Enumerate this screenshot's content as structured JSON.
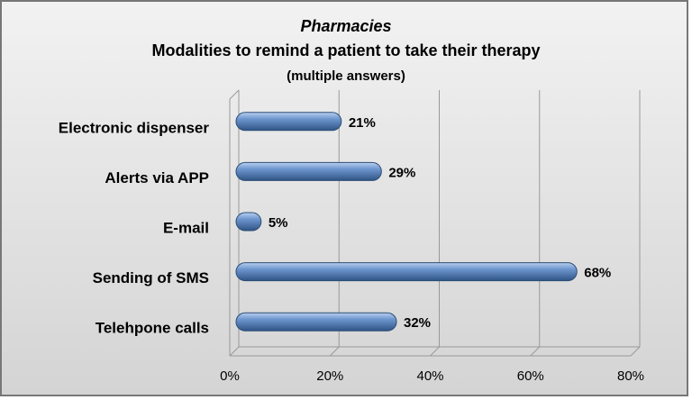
{
  "chart_data": {
    "type": "bar",
    "orientation": "horizontal",
    "title": "Pharmacies",
    "subtitle": "Modalities to remind a patient to take their therapy",
    "annotation": "(multiple answers)",
    "categories": [
      "Electronic dispenser",
      "Alerts via APP",
      "E-mail",
      "Sending of SMS",
      "Telehpone calls"
    ],
    "values": [
      21,
      29,
      5,
      68,
      32
    ],
    "value_labels": [
      "21%",
      "29%",
      "5%",
      "68%",
      "32%"
    ],
    "color": "#4f81bd",
    "xlim": [
      0,
      80
    ],
    "xticks": [
      {
        "value": 0,
        "label": "0%"
      },
      {
        "value": 20,
        "label": "20%"
      },
      {
        "value": 40,
        "label": "40%"
      },
      {
        "value": 60,
        "label": "60%"
      },
      {
        "value": 80,
        "label": "80%"
      }
    ],
    "grid": true
  }
}
